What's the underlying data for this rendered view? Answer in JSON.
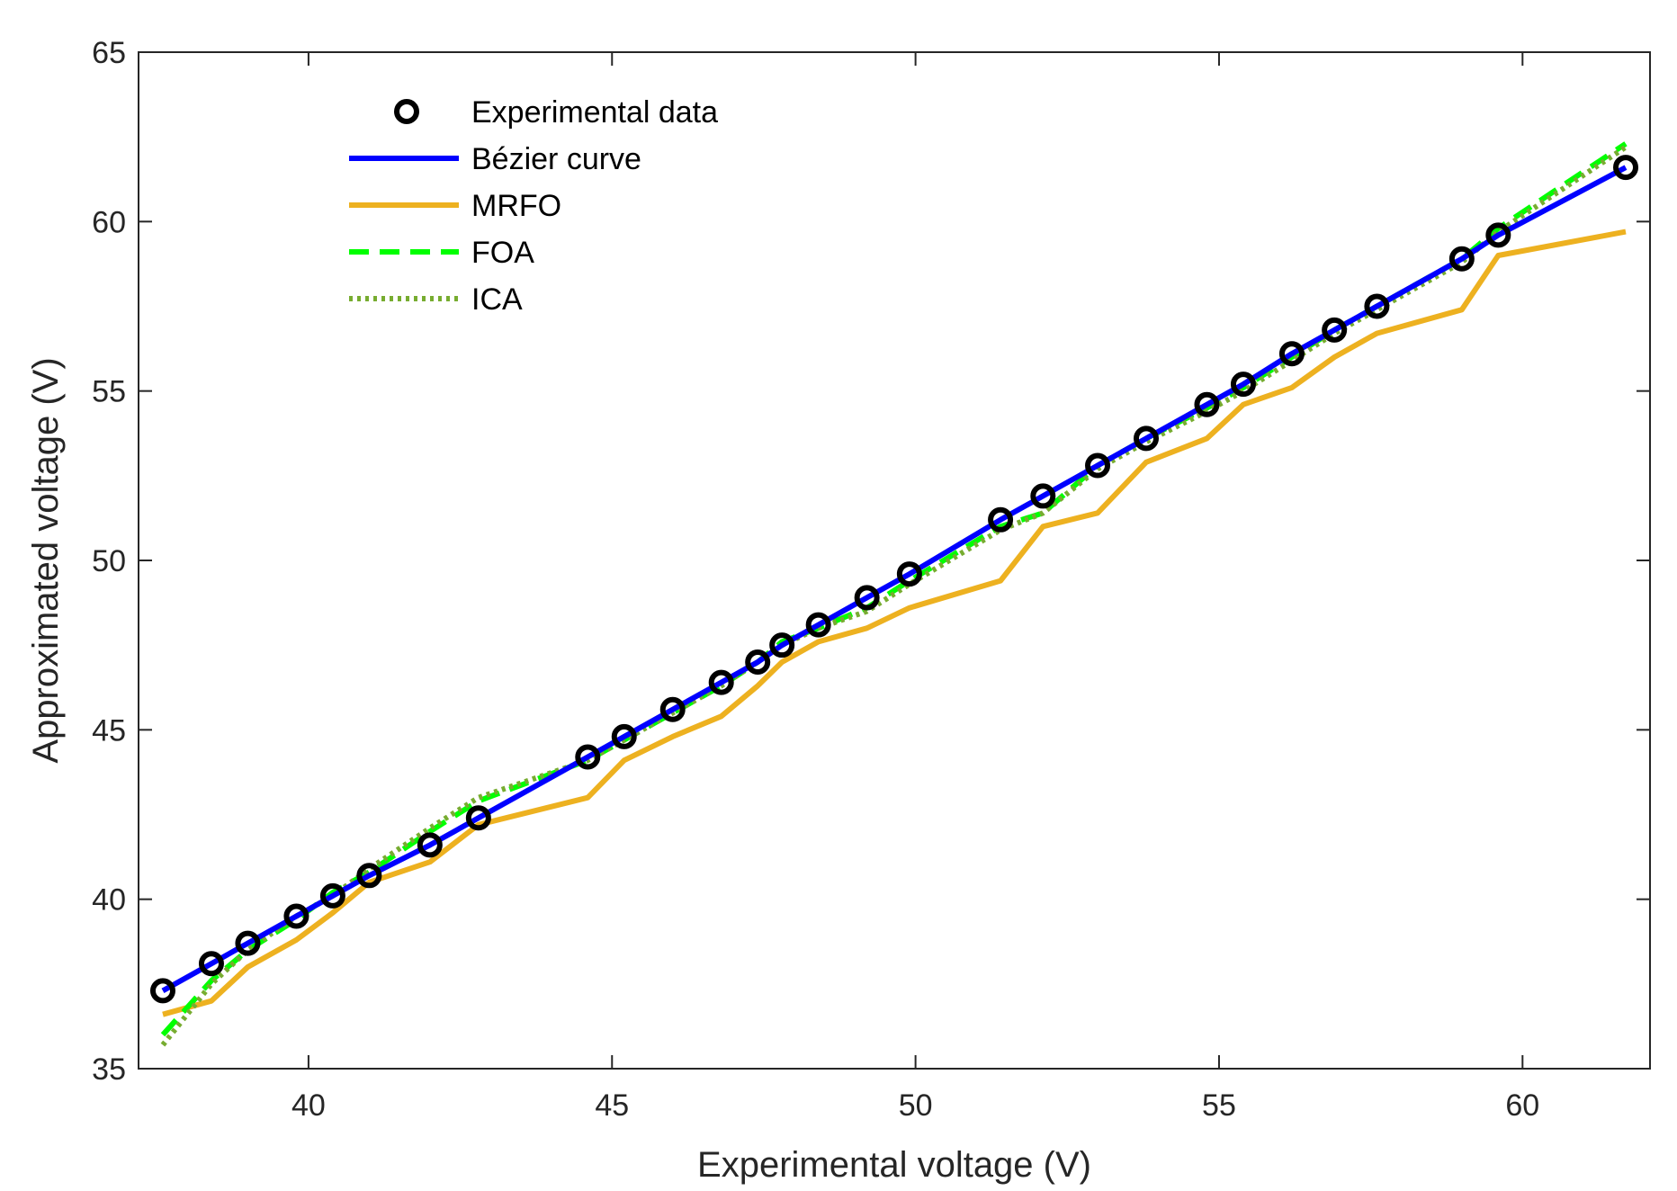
{
  "chart_data": {
    "type": "line",
    "xlabel": "Experimental voltage (V)",
    "ylabel": "Approximated voltage (V)",
    "xlim": [
      37.2,
      62.1
    ],
    "ylim": [
      35,
      65
    ],
    "xticks": [
      40,
      45,
      50,
      55,
      60
    ],
    "yticks": [
      35,
      40,
      45,
      50,
      55,
      60,
      65
    ],
    "grid": false,
    "legend_position": "top-left",
    "series": [
      {
        "name": "Experimental data",
        "style": "markers",
        "color": "#000000",
        "x": [
          37.6,
          38.4,
          39.0,
          39.8,
          40.4,
          41.0,
          42.0,
          42.8,
          44.6,
          45.2,
          46.0,
          46.8,
          47.4,
          47.8,
          48.4,
          49.2,
          49.9,
          51.4,
          52.1,
          53.0,
          53.8,
          54.8,
          55.4,
          56.2,
          56.9,
          57.6,
          59.0,
          59.6,
          61.7
        ],
        "y": [
          37.3,
          38.1,
          38.7,
          39.5,
          40.1,
          40.7,
          41.6,
          42.4,
          44.2,
          44.8,
          45.6,
          46.4,
          47.0,
          47.5,
          48.1,
          48.9,
          49.6,
          51.2,
          51.9,
          52.8,
          53.6,
          54.6,
          55.2,
          56.1,
          56.8,
          57.5,
          58.9,
          59.6,
          61.6
        ]
      },
      {
        "name": "Bézier curve",
        "style": "solid",
        "color": "#0000ff",
        "x": [
          37.6,
          38.4,
          39.0,
          39.8,
          40.4,
          41.0,
          42.0,
          42.8,
          44.6,
          45.2,
          46.0,
          46.8,
          47.4,
          47.8,
          48.4,
          49.2,
          49.9,
          51.4,
          52.1,
          53.0,
          53.8,
          54.8,
          55.4,
          56.2,
          56.9,
          57.6,
          59.0,
          59.6,
          61.7
        ],
        "y": [
          37.3,
          38.1,
          38.7,
          39.5,
          40.1,
          40.7,
          41.6,
          42.4,
          44.2,
          44.8,
          45.6,
          46.4,
          47.0,
          47.5,
          48.1,
          48.9,
          49.6,
          51.2,
          51.9,
          52.8,
          53.6,
          54.6,
          55.2,
          56.1,
          56.8,
          57.5,
          58.9,
          59.6,
          61.6
        ]
      },
      {
        "name": "MRFO",
        "style": "solid",
        "color": "#edb120",
        "x": [
          37.6,
          38.4,
          39.0,
          39.8,
          40.4,
          41.0,
          42.0,
          42.8,
          44.6,
          45.2,
          46.0,
          46.8,
          47.4,
          47.8,
          48.4,
          49.2,
          49.9,
          51.4,
          52.1,
          53.0,
          53.8,
          54.8,
          55.4,
          56.2,
          56.9,
          57.6,
          59.0,
          59.6,
          61.7
        ],
        "y": [
          36.6,
          37.0,
          38.0,
          38.8,
          39.6,
          40.5,
          41.1,
          42.2,
          43.0,
          44.1,
          44.8,
          45.4,
          46.3,
          47.0,
          47.6,
          48.0,
          48.6,
          49.4,
          51.0,
          51.4,
          52.9,
          53.6,
          54.6,
          55.1,
          56.0,
          56.7,
          57.4,
          59.0,
          59.7
        ]
      },
      {
        "name": "FOA",
        "style": "dashed",
        "color": "#00ff00",
        "x": [
          37.6,
          38.4,
          39.0,
          39.8,
          40.4,
          41.0,
          42.0,
          42.8,
          44.6,
          45.2,
          46.0,
          46.8,
          47.4,
          47.8,
          48.4,
          49.2,
          49.9,
          51.4,
          52.1,
          53.0,
          53.8,
          54.8,
          55.4,
          56.2,
          56.9,
          57.6,
          59.0,
          59.6,
          61.7
        ],
        "y": [
          36.0,
          37.6,
          38.5,
          39.4,
          40.2,
          40.8,
          42.0,
          42.9,
          44.1,
          44.7,
          45.5,
          46.3,
          47.0,
          47.6,
          48.0,
          48.6,
          49.4,
          51.0,
          51.4,
          52.8,
          53.6,
          54.5,
          55.1,
          56.0,
          56.8,
          57.5,
          58.9,
          59.8,
          62.3
        ]
      },
      {
        "name": "ICA",
        "style": "dotted",
        "color": "#77ac30",
        "x": [
          37.6,
          38.4,
          39.0,
          39.8,
          40.4,
          41.0,
          42.0,
          42.8,
          44.6,
          45.2,
          46.0,
          46.8,
          47.4,
          47.8,
          48.4,
          49.2,
          49.9,
          51.4,
          52.1,
          53.0,
          53.8,
          54.8,
          55.4,
          56.2,
          56.9,
          57.6,
          59.0,
          59.6,
          61.7
        ],
        "y": [
          35.7,
          37.5,
          38.5,
          39.5,
          40.1,
          40.9,
          42.1,
          43.0,
          44.1,
          44.7,
          45.5,
          46.3,
          47.0,
          47.5,
          48.0,
          48.5,
          49.3,
          50.9,
          51.4,
          52.7,
          53.5,
          54.4,
          55.0,
          55.9,
          56.7,
          57.4,
          58.8,
          59.7,
          62.2
        ]
      }
    ]
  }
}
